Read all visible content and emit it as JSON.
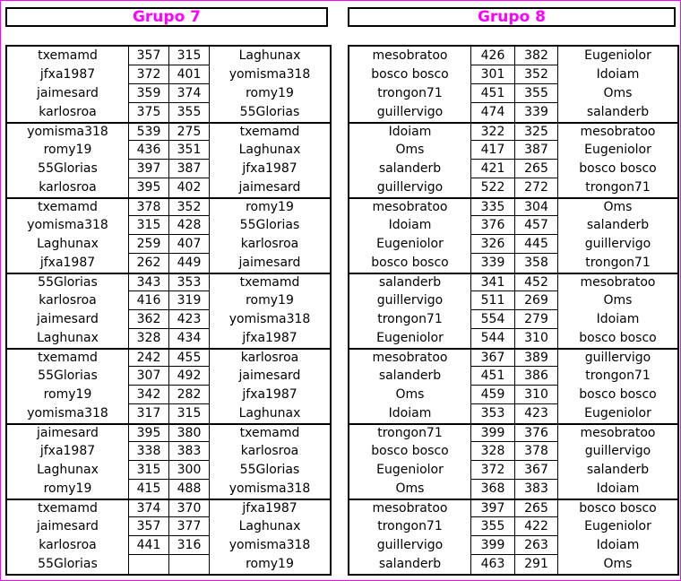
{
  "groups": [
    {
      "title": "Grupo 7",
      "rounds": [
        [
          [
            "txemamd",
            "357",
            "315",
            "Laghunax"
          ],
          [
            "jfxa1987",
            "372",
            "401",
            "yomisma318"
          ],
          [
            "jaimesard",
            "359",
            "374",
            "romy19"
          ],
          [
            "karlosroa",
            "375",
            "355",
            "55Glorias"
          ]
        ],
        [
          [
            "yomisma318",
            "539",
            "275",
            "txemamd"
          ],
          [
            "romy19",
            "436",
            "351",
            "Laghunax"
          ],
          [
            "55Glorias",
            "397",
            "387",
            "jfxa1987"
          ],
          [
            "karlosroa",
            "395",
            "402",
            "jaimesard"
          ]
        ],
        [
          [
            "txemamd",
            "378",
            "352",
            "romy19"
          ],
          [
            "yomisma318",
            "315",
            "428",
            "55Glorias"
          ],
          [
            "Laghunax",
            "259",
            "407",
            "karlosroa"
          ],
          [
            "jfxa1987",
            "262",
            "449",
            "jaimesard"
          ]
        ],
        [
          [
            "55Glorias",
            "343",
            "353",
            "txemamd"
          ],
          [
            "karlosroa",
            "416",
            "319",
            "romy19"
          ],
          [
            "jaimesard",
            "362",
            "423",
            "yomisma318"
          ],
          [
            "Laghunax",
            "328",
            "434",
            "jfxa1987"
          ]
        ],
        [
          [
            "txemamd",
            "242",
            "455",
            "karlosroa"
          ],
          [
            "55Glorias",
            "307",
            "492",
            "jaimesard"
          ],
          [
            "romy19",
            "342",
            "282",
            "jfxa1987"
          ],
          [
            "yomisma318",
            "317",
            "315",
            "Laghunax"
          ]
        ],
        [
          [
            "jaimesard",
            "395",
            "380",
            "txemamd"
          ],
          [
            "jfxa1987",
            "338",
            "383",
            "karlosroa"
          ],
          [
            "Laghunax",
            "315",
            "300",
            "55Glorias"
          ],
          [
            "romy19",
            "415",
            "488",
            "yomisma318"
          ]
        ],
        [
          [
            "txemamd",
            "374",
            "370",
            "jfxa1987"
          ],
          [
            "jaimesard",
            "357",
            "377",
            "Laghunax"
          ],
          [
            "karlosroa",
            "441",
            "316",
            "yomisma318"
          ],
          [
            "55Glorias",
            "",
            "",
            "romy19"
          ]
        ]
      ]
    },
    {
      "title": "Grupo 8",
      "rounds": [
        [
          [
            "mesobratoo",
            "426",
            "382",
            "Eugeniolor"
          ],
          [
            "bosco bosco",
            "301",
            "352",
            "Idoiam"
          ],
          [
            "trongon71",
            "451",
            "355",
            "Oms"
          ],
          [
            "guillervigo",
            "474",
            "339",
            "salanderb"
          ]
        ],
        [
          [
            "Idoiam",
            "322",
            "325",
            "mesobratoo"
          ],
          [
            "Oms",
            "417",
            "387",
            "Eugeniolor"
          ],
          [
            "salanderb",
            "421",
            "265",
            "bosco bosco"
          ],
          [
            "guillervigo",
            "522",
            "272",
            "trongon71"
          ]
        ],
        [
          [
            "mesobratoo",
            "335",
            "304",
            "Oms"
          ],
          [
            "Idoiam",
            "376",
            "457",
            "salanderb"
          ],
          [
            "Eugeniolor",
            "326",
            "445",
            "guillervigo"
          ],
          [
            "bosco bosco",
            "339",
            "358",
            "trongon71"
          ]
        ],
        [
          [
            "salanderb",
            "341",
            "452",
            "mesobratoo"
          ],
          [
            "guillervigo",
            "511",
            "269",
            "Oms"
          ],
          [
            "trongon71",
            "554",
            "279",
            "Idoiam"
          ],
          [
            "Eugeniolor",
            "544",
            "310",
            "bosco bosco"
          ]
        ],
        [
          [
            "mesobratoo",
            "367",
            "389",
            "guillervigo"
          ],
          [
            "salanderb",
            "451",
            "386",
            "trongon71"
          ],
          [
            "Oms",
            "459",
            "310",
            "bosco bosco"
          ],
          [
            "Idoiam",
            "353",
            "423",
            "Eugeniolor"
          ]
        ],
        [
          [
            "trongon71",
            "399",
            "376",
            "mesobratoo"
          ],
          [
            "bosco bosco",
            "328",
            "378",
            "guillervigo"
          ],
          [
            "Eugeniolor",
            "372",
            "367",
            "salanderb"
          ],
          [
            "Oms",
            "368",
            "383",
            "Idoiam"
          ]
        ],
        [
          [
            "mesobratoo",
            "397",
            "265",
            "bosco bosco"
          ],
          [
            "trongon71",
            "355",
            "422",
            "Eugeniolor"
          ],
          [
            "guillervigo",
            "399",
            "263",
            "Idoiam"
          ],
          [
            "salanderb",
            "463",
            "291",
            "Oms"
          ]
        ]
      ]
    }
  ],
  "colors": {
    "title": "#ff00ff",
    "frame": "#ff00ff"
  }
}
